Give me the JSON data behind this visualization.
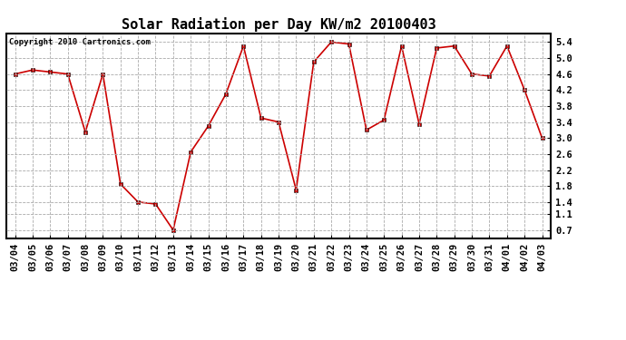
{
  "title": "Solar Radiation per Day KW/m2 20100403",
  "copyright": "Copyright 2010 Cartronics.com",
  "dates": [
    "03/04",
    "03/05",
    "03/06",
    "03/07",
    "03/08",
    "03/09",
    "03/10",
    "03/11",
    "03/12",
    "03/13",
    "03/14",
    "03/15",
    "03/16",
    "03/17",
    "03/18",
    "03/19",
    "03/20",
    "03/21",
    "03/22",
    "03/23",
    "03/24",
    "03/25",
    "03/26",
    "03/27",
    "03/28",
    "03/29",
    "03/30",
    "03/31",
    "04/01",
    "04/02",
    "04/03"
  ],
  "values": [
    4.6,
    4.7,
    4.65,
    4.6,
    3.15,
    4.6,
    1.85,
    1.4,
    1.35,
    0.7,
    2.65,
    3.3,
    4.1,
    5.3,
    3.5,
    3.4,
    1.7,
    4.9,
    5.4,
    5.35,
    3.2,
    3.45,
    5.3,
    3.35,
    5.25,
    5.3,
    4.6,
    4.55,
    5.3,
    4.2,
    3.0
  ],
  "line_color": "#cc0000",
  "marker": "s",
  "marker_size": 2.5,
  "bg_color": "#ffffff",
  "grid_color": "#aaaaaa",
  "yticks": [
    0.7,
    1.1,
    1.4,
    1.8,
    2.2,
    2.6,
    3.0,
    3.4,
    3.8,
    4.2,
    4.6,
    5.0,
    5.4
  ],
  "ylim": [
    0.5,
    5.6
  ],
  "title_fontsize": 11,
  "tick_fontsize": 7.5,
  "copyright_fontsize": 6.5,
  "linewidth": 1.2
}
